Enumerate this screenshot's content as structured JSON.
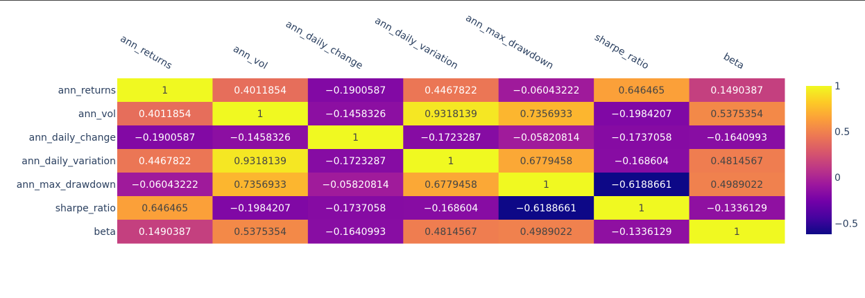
{
  "chart_data": {
    "type": "heatmap",
    "labels": [
      "ann_returns",
      "ann_vol",
      "ann_daily_change",
      "ann_daily_variation",
      "ann_max_drawdown",
      "sharpe_ratio",
      "beta"
    ],
    "matrix": [
      [
        1,
        0.4011854,
        -0.1900587,
        0.4467822,
        -0.06043222,
        0.646465,
        0.1490387
      ],
      [
        0.4011854,
        1,
        -0.1458326,
        0.9318139,
        0.7356933,
        -0.1984207,
        0.5375354
      ],
      [
        -0.1900587,
        -0.1458326,
        1,
        -0.1723287,
        -0.05820814,
        -0.1737058,
        -0.1640993
      ],
      [
        0.4467822,
        0.9318139,
        -0.1723287,
        1,
        0.6779458,
        -0.168604,
        0.4814567
      ],
      [
        -0.06043222,
        0.7356933,
        -0.05820814,
        0.6779458,
        1,
        -0.6188661,
        0.4989022
      ],
      [
        0.646465,
        -0.1984207,
        -0.1737058,
        -0.168604,
        -0.6188661,
        1,
        -0.1336129
      ],
      [
        0.1490387,
        0.5375354,
        -0.1640993,
        0.4814567,
        0.4989022,
        -0.1336129,
        1
      ]
    ],
    "cell_text": [
      [
        "1",
        "0.4011854",
        "−0.1900587",
        "0.4467822",
        "−0.06043222",
        "0.646465",
        "0.1490387"
      ],
      [
        "0.4011854",
        "1",
        "−0.1458326",
        "0.9318139",
        "0.7356933",
        "−0.1984207",
        "0.5375354"
      ],
      [
        "−0.1900587",
        "−0.1458326",
        "1",
        "−0.1723287",
        "−0.05820814",
        "−0.1737058",
        "−0.1640993"
      ],
      [
        "0.4467822",
        "0.9318139",
        "−0.1723287",
        "1",
        "0.6779458",
        "−0.168604",
        "0.4814567"
      ],
      [
        "−0.06043222",
        "0.7356933",
        "−0.05820814",
        "0.6779458",
        "1",
        "−0.6188661",
        "0.4989022"
      ],
      [
        "0.646465",
        "−0.1984207",
        "−0.1737058",
        "−0.168604",
        "−0.6188661",
        "1",
        "−0.1336129"
      ],
      [
        "0.1490387",
        "0.5375354",
        "−0.1640993",
        "0.4814567",
        "0.4989022",
        "−0.1336129",
        "1"
      ]
    ],
    "zmin": -0.6188661,
    "zmax": 1,
    "colorscale": "plasma",
    "colorbar": {
      "tickvals": [
        1,
        0.5,
        0,
        -0.5
      ],
      "ticktext": [
        "1",
        "0.5",
        "0",
        "−0.5"
      ]
    },
    "x_tick_angle_deg": -30,
    "colors": [
      "#0d0887",
      "#46039f",
      "#7201a8",
      "#9c179e",
      "#bd3786",
      "#d8576b",
      "#ed7953",
      "#fb9f3a",
      "#fdca26",
      "#f0f921"
    ],
    "title": "",
    "xlabel": "",
    "ylabel": ""
  }
}
